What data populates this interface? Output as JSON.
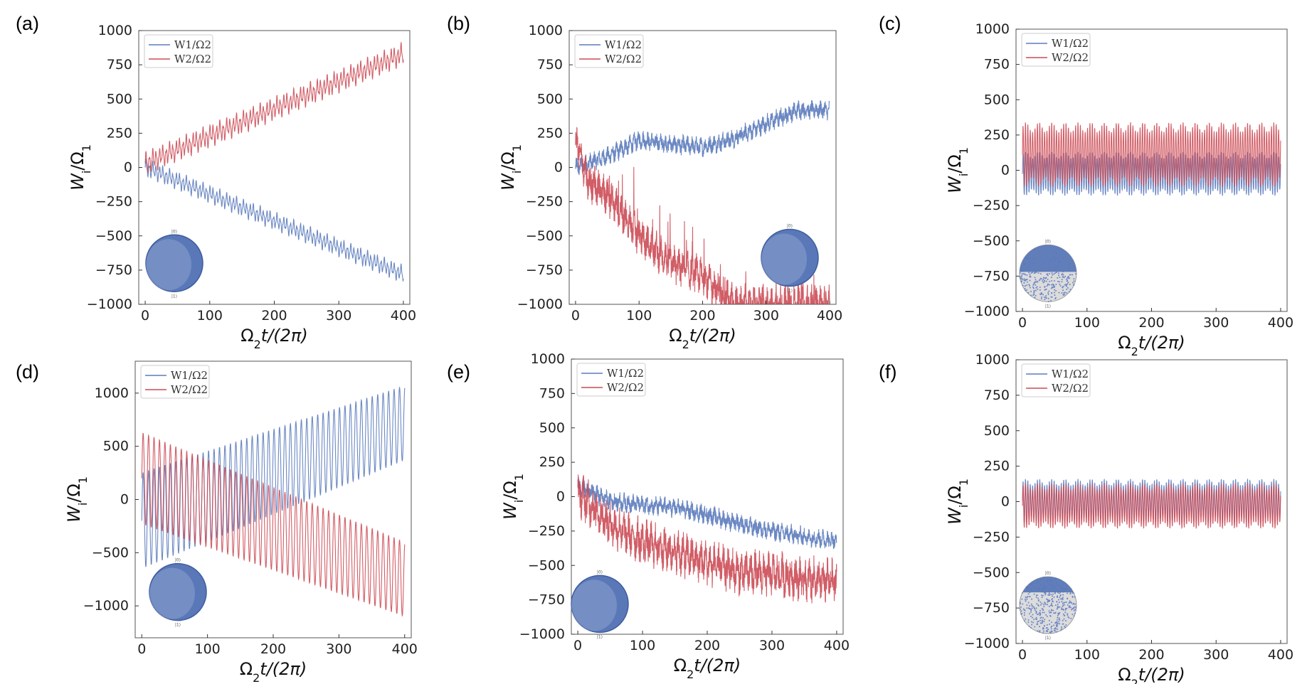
{
  "figure": {
    "colors": {
      "w1": "#5b7bbd",
      "w2": "#cc4b55",
      "frame": "#555555",
      "sphere": "#5a78b8",
      "sphere_light": "#a9b8d9",
      "dots_bg": "#dcdcdc"
    },
    "ylabel_main": "W",
    "ylabel_sub": "i",
    "ylabel_slash": "/Ω",
    "ylabel_sub2": "1",
    "xlabel_main": "Ω",
    "xlabel_sub": "2",
    "xlabel_rest": "t/(2π)",
    "legend_w1": "W1/Ω2",
    "legend_w2": "W2/Ω2",
    "sphere_top": "|0⟩",
    "sphere_bottom": "|1⟩"
  },
  "chart_data": [
    {
      "panel": "(a)",
      "type": "line",
      "xlim": [
        -10,
        410
      ],
      "ylim": [
        -1000,
        1000
      ],
      "xticks": [
        0,
        100,
        200,
        300,
        400
      ],
      "yticks": [
        -1000,
        -750,
        -500,
        -250,
        0,
        250,
        500,
        750,
        1000
      ],
      "tick_labels_y": [
        "−1000",
        "−750",
        "−500",
        "−250",
        "0",
        "250",
        "500",
        "750",
        "1000"
      ],
      "series": [
        {
          "name": "W1/Ω2",
          "pattern": "linear_osc",
          "start": 0,
          "end": -780,
          "amplitude": 70
        },
        {
          "name": "W2/Ω2",
          "pattern": "linear_osc",
          "start": 30,
          "end": 830,
          "amplitude": 90
        }
      ],
      "inset": "sphere",
      "legend": "top-left"
    },
    {
      "panel": "(b)",
      "type": "line",
      "xlim": [
        -10,
        410
      ],
      "ylim": [
        -1000,
        1000
      ],
      "xticks": [
        0,
        100,
        200,
        300,
        400
      ],
      "yticks": [
        -1000,
        -750,
        -500,
        -250,
        0,
        250,
        500,
        750,
        1000
      ],
      "tick_labels_y": [
        "−1000",
        "−750",
        "−500",
        "−250",
        "0",
        "250",
        "500",
        "750",
        "1000"
      ],
      "series": [
        {
          "name": "W1/Ω2",
          "pattern": "noisy",
          "points": [
            [
              0,
              0
            ],
            [
              50,
              80
            ],
            [
              100,
              200
            ],
            [
              150,
              170
            ],
            [
              200,
              150
            ],
            [
              250,
              210
            ],
            [
              300,
              320
            ],
            [
              350,
              420
            ],
            [
              400,
              420
            ]
          ],
          "amplitude": 60
        },
        {
          "name": "W2/Ω2",
          "pattern": "noisy_drop",
          "points": [
            [
              0,
              200
            ],
            [
              20,
              -100
            ],
            [
              50,
              -200
            ],
            [
              100,
              -500
            ],
            [
              150,
              -700
            ],
            [
              200,
              -800
            ],
            [
              250,
              -1000
            ],
            [
              400,
              -1000
            ]
          ],
          "amplitude": 120
        }
      ],
      "inset": "sphere",
      "legend": "top-left"
    },
    {
      "panel": "(c)",
      "type": "line",
      "xlim": [
        -10,
        410
      ],
      "ylim": [
        -1000,
        1000
      ],
      "xticks": [
        0,
        100,
        200,
        300,
        400
      ],
      "yticks": [
        -1000,
        -750,
        -500,
        -250,
        0,
        250,
        500,
        750,
        1000
      ],
      "tick_labels_y": [
        "−1000",
        "−750",
        "−500",
        "−250",
        "0",
        "250",
        "500",
        "750",
        "1000"
      ],
      "series": [
        {
          "name": "W1/Ω2",
          "pattern": "band",
          "low": -180,
          "high": 130
        },
        {
          "name": "W2/Ω2",
          "pattern": "band",
          "low": -120,
          "high": 340
        }
      ],
      "inset": "dots-lower",
      "legend": "top-left"
    },
    {
      "panel": "(d)",
      "type": "line",
      "xlim": [
        -10,
        410
      ],
      "ylim": [
        -1300,
        1300
      ],
      "xticks": [
        0,
        100,
        200,
        300,
        400
      ],
      "yticks": [
        -1000,
        -500,
        0,
        500,
        1000
      ],
      "tick_labels_y": [
        "−1000",
        "−500",
        "0",
        "500",
        "1000"
      ],
      "series": [
        {
          "name": "W1/Ω2",
          "pattern": "diverge",
          "center_start": -200,
          "center_end": 720,
          "amp_start": 450,
          "amp_end": 350
        },
        {
          "name": "W2/Ω2",
          "pattern": "diverge",
          "center_start": 200,
          "center_end": -750,
          "amp_start": 430,
          "amp_end": 350
        }
      ],
      "inset": "sphere",
      "legend": "top-left"
    },
    {
      "panel": "(e)",
      "type": "line",
      "xlim": [
        -10,
        410
      ],
      "ylim": [
        -1000,
        1000
      ],
      "xticks": [
        0,
        100,
        200,
        300,
        400
      ],
      "yticks": [
        -1000,
        -750,
        -500,
        -250,
        0,
        250,
        500,
        750,
        1000
      ],
      "tick_labels_y": [
        "−1000",
        "−750",
        "−500",
        "−250",
        "0",
        "250",
        "500",
        "750",
        "1000"
      ],
      "series": [
        {
          "name": "W1/Ω2",
          "pattern": "noisy",
          "points": [
            [
              0,
              80
            ],
            [
              50,
              -30
            ],
            [
              100,
              -60
            ],
            [
              150,
              -80
            ],
            [
              200,
              -130
            ],
            [
              250,
              -200
            ],
            [
              300,
              -250
            ],
            [
              350,
              -290
            ],
            [
              400,
              -320
            ]
          ],
          "amplitude": 60
        },
        {
          "name": "W2/Ω2",
          "pattern": "noisy",
          "points": [
            [
              0,
              30
            ],
            [
              50,
              -200
            ],
            [
              100,
              -330
            ],
            [
              150,
              -400
            ],
            [
              200,
              -480
            ],
            [
              250,
              -550
            ],
            [
              300,
              -560
            ],
            [
              350,
              -600
            ],
            [
              400,
              -620
            ]
          ],
          "amplitude": 140
        }
      ],
      "inset": "sphere",
      "legend": "top-left"
    },
    {
      "panel": "(f)",
      "type": "line",
      "xlim": [
        -10,
        410
      ],
      "ylim": [
        -1000,
        1000
      ],
      "xticks": [
        0,
        100,
        200,
        300,
        400
      ],
      "yticks": [
        -1000,
        -750,
        -500,
        -250,
        0,
        250,
        500,
        750,
        1000
      ],
      "tick_labels_y": [
        "−1000",
        "−750",
        "−500",
        "−250",
        "0",
        "250",
        "500",
        "750",
        "1000"
      ],
      "series": [
        {
          "name": "W1/Ω2",
          "pattern": "band",
          "low": -150,
          "high": 160
        },
        {
          "name": "W2/Ω2",
          "pattern": "band",
          "low": -190,
          "high": 130
        }
      ],
      "inset": "dots-full",
      "legend": "top-left"
    }
  ]
}
